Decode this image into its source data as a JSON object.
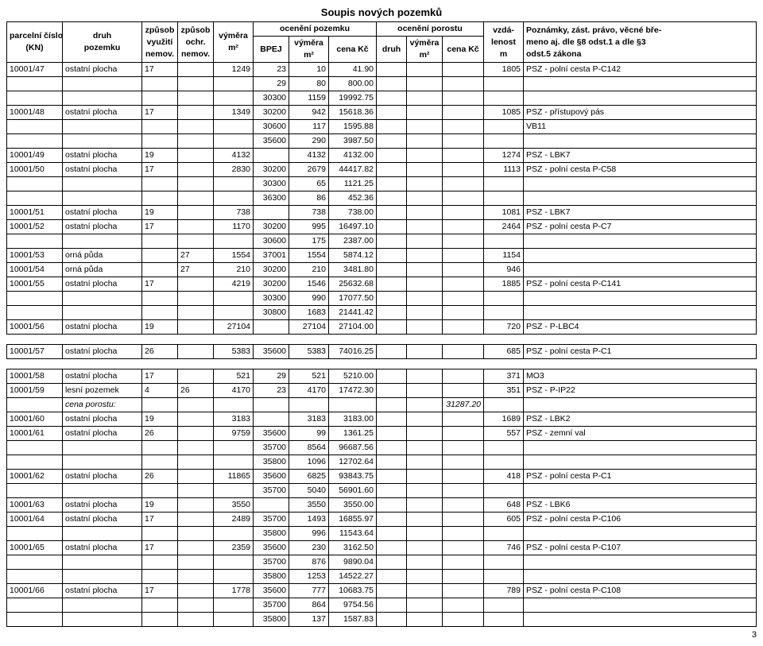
{
  "title": "Soupis nových pozemků",
  "page_number": "3",
  "header": {
    "parcela1": "parcelní číslo",
    "parcela2": "(KN)",
    "druh1": "druh",
    "druh2": "pozemku",
    "vyuziti1": "způsob",
    "vyuziti2": "využití",
    "vyuziti3": "nemov.",
    "ochr1": "způsob",
    "ochr2": "ochr.",
    "ochr3": "nemov.",
    "vymera1": "výměra",
    "vymera2": "m²",
    "oceneni_poz": "ocenění pozemku",
    "bpej": "BPEJ",
    "vymera_b1": "výměra",
    "vymera_b2": "m²",
    "cena_kc": "cena Kč",
    "oceneni_por": "ocenění porostu",
    "druh_p": "druh",
    "vymera_p1": "výměra",
    "vymera_p2": "m²",
    "cena_p": "cena Kč",
    "vzd1": "vzdá-",
    "vzd2": "lenost",
    "vzd3": "m",
    "pozn1": "Poznámky, zást. právo, věcné bře-",
    "pozn2": "meno aj. dle §8 odst.1 a dle §3",
    "pozn3": "odst.5 zákona"
  },
  "rows": [
    {
      "parc": "10001/47",
      "druh": "ostatní plocha",
      "vyuz": "17",
      "ochr": "",
      "vym": "1249",
      "bpej": "23",
      "vym2": "10",
      "cena": "41.90",
      "druh2": "",
      "vym3": "",
      "cena2": "",
      "vzd": "1805",
      "pozn": "PSZ - polní cesta P-C142"
    },
    {
      "parc": "",
      "druh": "",
      "vyuz": "",
      "ochr": "",
      "vym": "",
      "bpej": "29",
      "vym2": "80",
      "cena": "800.00",
      "druh2": "",
      "vym3": "",
      "cena2": "",
      "vzd": "",
      "pozn": ""
    },
    {
      "parc": "",
      "druh": "",
      "vyuz": "",
      "ochr": "",
      "vym": "",
      "bpej": "30300",
      "vym2": "1159",
      "cena": "19992.75",
      "druh2": "",
      "vym3": "",
      "cena2": "",
      "vzd": "",
      "pozn": ""
    },
    {
      "parc": "10001/48",
      "druh": "ostatní plocha",
      "vyuz": "17",
      "ochr": "",
      "vym": "1349",
      "bpej": "30200",
      "vym2": "942",
      "cena": "15618.36",
      "druh2": "",
      "vym3": "",
      "cena2": "",
      "vzd": "1085",
      "pozn": "PSZ - přístupový pás"
    },
    {
      "parc": "",
      "druh": "",
      "vyuz": "",
      "ochr": "",
      "vym": "",
      "bpej": "30600",
      "vym2": "117",
      "cena": "1595.88",
      "druh2": "",
      "vym3": "",
      "cena2": "",
      "vzd": "",
      "pozn": "VB11"
    },
    {
      "parc": "",
      "druh": "",
      "vyuz": "",
      "ochr": "",
      "vym": "",
      "bpej": "35600",
      "vym2": "290",
      "cena": "3987.50",
      "druh2": "",
      "vym3": "",
      "cena2": "",
      "vzd": "",
      "pozn": ""
    },
    {
      "parc": "10001/49",
      "druh": "ostatní plocha",
      "vyuz": "19",
      "ochr": "",
      "vym": "4132",
      "bpej": "",
      "vym2": "4132",
      "cena": "4132.00",
      "druh2": "",
      "vym3": "",
      "cena2": "",
      "vzd": "1274",
      "pozn": "PSZ - LBK7"
    },
    {
      "parc": "10001/50",
      "druh": "ostatní plocha",
      "vyuz": "17",
      "ochr": "",
      "vym": "2830",
      "bpej": "30200",
      "vym2": "2679",
      "cena": "44417.82",
      "druh2": "",
      "vym3": "",
      "cena2": "",
      "vzd": "1113",
      "pozn": "PSZ - polní cesta P-C58"
    },
    {
      "parc": "",
      "druh": "",
      "vyuz": "",
      "ochr": "",
      "vym": "",
      "bpej": "30300",
      "vym2": "65",
      "cena": "1121.25",
      "druh2": "",
      "vym3": "",
      "cena2": "",
      "vzd": "",
      "pozn": ""
    },
    {
      "parc": "",
      "druh": "",
      "vyuz": "",
      "ochr": "",
      "vym": "",
      "bpej": "36300",
      "vym2": "86",
      "cena": "452.36",
      "druh2": "",
      "vym3": "",
      "cena2": "",
      "vzd": "",
      "pozn": ""
    },
    {
      "parc": "10001/51",
      "druh": "ostatní plocha",
      "vyuz": "19",
      "ochr": "",
      "vym": "738",
      "bpej": "",
      "vym2": "738",
      "cena": "738.00",
      "druh2": "",
      "vym3": "",
      "cena2": "",
      "vzd": "1081",
      "pozn": "PSZ - LBK7"
    },
    {
      "parc": "10001/52",
      "druh": "ostatní plocha",
      "vyuz": "17",
      "ochr": "",
      "vym": "1170",
      "bpej": "30200",
      "vym2": "995",
      "cena": "16497.10",
      "druh2": "",
      "vym3": "",
      "cena2": "",
      "vzd": "2464",
      "pozn": "PSZ - polní cesta P-C7"
    },
    {
      "parc": "",
      "druh": "",
      "vyuz": "",
      "ochr": "",
      "vym": "",
      "bpej": "30600",
      "vym2": "175",
      "cena": "2387.00",
      "druh2": "",
      "vym3": "",
      "cena2": "",
      "vzd": "",
      "pozn": ""
    },
    {
      "parc": "10001/53",
      "druh": "orná půda",
      "vyuz": "",
      "ochr": "27",
      "vym": "1554",
      "bpej": "37001",
      "vym2": "1554",
      "cena": "5874.12",
      "druh2": "",
      "vym3": "",
      "cena2": "",
      "vzd": "1154",
      "pozn": ""
    },
    {
      "parc": "10001/54",
      "druh": "orná půda",
      "vyuz": "",
      "ochr": "27",
      "vym": "210",
      "bpej": "30200",
      "vym2": "210",
      "cena": "3481.80",
      "druh2": "",
      "vym3": "",
      "cena2": "",
      "vzd": "946",
      "pozn": ""
    },
    {
      "parc": "10001/55",
      "druh": "ostatní plocha",
      "vyuz": "17",
      "ochr": "",
      "vym": "4219",
      "bpej": "30200",
      "vym2": "1546",
      "cena": "25632.68",
      "druh2": "",
      "vym3": "",
      "cena2": "",
      "vzd": "1885",
      "pozn": "PSZ - polní cesta P-C141"
    },
    {
      "parc": "",
      "druh": "",
      "vyuz": "",
      "ochr": "",
      "vym": "",
      "bpej": "30300",
      "vym2": "990",
      "cena": "17077.50",
      "druh2": "",
      "vym3": "",
      "cena2": "",
      "vzd": "",
      "pozn": ""
    },
    {
      "parc": "",
      "druh": "",
      "vyuz": "",
      "ochr": "",
      "vym": "",
      "bpej": "30800",
      "vym2": "1683",
      "cena": "21441.42",
      "druh2": "",
      "vym3": "",
      "cena2": "",
      "vzd": "",
      "pozn": ""
    },
    {
      "parc": "10001/56",
      "druh": "ostatní plocha",
      "vyuz": "19",
      "ochr": "",
      "vym": "27104",
      "bpej": "",
      "vym2": "27104",
      "cena": "27104.00",
      "druh2": "",
      "vym3": "",
      "cena2": "",
      "vzd": "720",
      "pozn": "PSZ - P-LBC4"
    },
    {
      "gap": true
    },
    {
      "parc": "10001/57",
      "druh": "ostatní plocha",
      "vyuz": "26",
      "ochr": "",
      "vym": "5383",
      "bpej": "35600",
      "vym2": "5383",
      "cena": "74016.25",
      "druh2": "",
      "vym3": "",
      "cena2": "",
      "vzd": "685",
      "pozn": "PSZ - polní cesta P-C1"
    },
    {
      "gap": true
    },
    {
      "parc": "10001/58",
      "druh": "ostatní plocha",
      "vyuz": "17",
      "ochr": "",
      "vym": "521",
      "bpej": "29",
      "vym2": "521",
      "cena": "5210.00",
      "druh2": "",
      "vym3": "",
      "cena2": "",
      "vzd": "371",
      "pozn": "MO3"
    },
    {
      "parc": "10001/59",
      "druh": "lesní pozemek",
      "vyuz": "4",
      "ochr": "26",
      "vym": "4170",
      "bpej": "23",
      "vym2": "4170",
      "cena": "17472.30",
      "druh2": "",
      "vym3": "",
      "cena2": "",
      "vzd": "351",
      "pozn": "PSZ - P-IP22"
    },
    {
      "parc": "",
      "druh": "cena porostu:",
      "vyuz": "",
      "ochr": "",
      "vym": "",
      "bpej": "",
      "vym2": "",
      "cena": "",
      "druh2": "",
      "vym3": "",
      "cena2": "31287.20",
      "vzd": "",
      "pozn": "",
      "italic": true
    },
    {
      "parc": "10001/60",
      "druh": "ostatní plocha",
      "vyuz": "19",
      "ochr": "",
      "vym": "3183",
      "bpej": "",
      "vym2": "3183",
      "cena": "3183.00",
      "druh2": "",
      "vym3": "",
      "cena2": "",
      "vzd": "1689",
      "pozn": "PSZ - LBK2"
    },
    {
      "parc": "10001/61",
      "druh": "ostatní plocha",
      "vyuz": "26",
      "ochr": "",
      "vym": "9759",
      "bpej": "35600",
      "vym2": "99",
      "cena": "1361.25",
      "druh2": "",
      "vym3": "",
      "cena2": "",
      "vzd": "557",
      "pozn": "PSZ - zemní val"
    },
    {
      "parc": "",
      "druh": "",
      "vyuz": "",
      "ochr": "",
      "vym": "",
      "bpej": "35700",
      "vym2": "8564",
      "cena": "96687.56",
      "druh2": "",
      "vym3": "",
      "cena2": "",
      "vzd": "",
      "pozn": ""
    },
    {
      "parc": "",
      "druh": "",
      "vyuz": "",
      "ochr": "",
      "vym": "",
      "bpej": "35800",
      "vym2": "1096",
      "cena": "12702.64",
      "druh2": "",
      "vym3": "",
      "cena2": "",
      "vzd": "",
      "pozn": ""
    },
    {
      "parc": "10001/62",
      "druh": "ostatní plocha",
      "vyuz": "26",
      "ochr": "",
      "vym": "11865",
      "bpej": "35600",
      "vym2": "6825",
      "cena": "93843.75",
      "druh2": "",
      "vym3": "",
      "cena2": "",
      "vzd": "418",
      "pozn": "PSZ - polní cesta P-C1"
    },
    {
      "parc": "",
      "druh": "",
      "vyuz": "",
      "ochr": "",
      "vym": "",
      "bpej": "35700",
      "vym2": "5040",
      "cena": "56901.60",
      "druh2": "",
      "vym3": "",
      "cena2": "",
      "vzd": "",
      "pozn": ""
    },
    {
      "parc": "10001/63",
      "druh": "ostatní plocha",
      "vyuz": "19",
      "ochr": "",
      "vym": "3550",
      "bpej": "",
      "vym2": "3550",
      "cena": "3550.00",
      "druh2": "",
      "vym3": "",
      "cena2": "",
      "vzd": "648",
      "pozn": "PSZ - LBK6"
    },
    {
      "parc": "10001/64",
      "druh": "ostatní plocha",
      "vyuz": "17",
      "ochr": "",
      "vym": "2489",
      "bpej": "35700",
      "vym2": "1493",
      "cena": "16855.97",
      "druh2": "",
      "vym3": "",
      "cena2": "",
      "vzd": "605",
      "pozn": "PSZ - polní cesta P-C106"
    },
    {
      "parc": "",
      "druh": "",
      "vyuz": "",
      "ochr": "",
      "vym": "",
      "bpej": "35800",
      "vym2": "996",
      "cena": "11543.64",
      "druh2": "",
      "vym3": "",
      "cena2": "",
      "vzd": "",
      "pozn": ""
    },
    {
      "parc": "10001/65",
      "druh": "ostatní plocha",
      "vyuz": "17",
      "ochr": "",
      "vym": "2359",
      "bpej": "35600",
      "vym2": "230",
      "cena": "3162.50",
      "druh2": "",
      "vym3": "",
      "cena2": "",
      "vzd": "746",
      "pozn": "PSZ - polní cesta P-C107"
    },
    {
      "parc": "",
      "druh": "",
      "vyuz": "",
      "ochr": "",
      "vym": "",
      "bpej": "35700",
      "vym2": "876",
      "cena": "9890.04",
      "druh2": "",
      "vym3": "",
      "cena2": "",
      "vzd": "",
      "pozn": ""
    },
    {
      "parc": "",
      "druh": "",
      "vyuz": "",
      "ochr": "",
      "vym": "",
      "bpej": "35800",
      "vym2": "1253",
      "cena": "14522.27",
      "druh2": "",
      "vym3": "",
      "cena2": "",
      "vzd": "",
      "pozn": ""
    },
    {
      "parc": "10001/66",
      "druh": "ostatní plocha",
      "vyuz": "17",
      "ochr": "",
      "vym": "1778",
      "bpej": "35600",
      "vym2": "777",
      "cena": "10683.75",
      "druh2": "",
      "vym3": "",
      "cena2": "",
      "vzd": "789",
      "pozn": "PSZ - polní cesta P-C108"
    },
    {
      "parc": "",
      "druh": "",
      "vyuz": "",
      "ochr": "",
      "vym": "",
      "bpej": "35700",
      "vym2": "864",
      "cena": "9754.56",
      "druh2": "",
      "vym3": "",
      "cena2": "",
      "vzd": "",
      "pozn": ""
    },
    {
      "parc": "",
      "druh": "",
      "vyuz": "",
      "ochr": "",
      "vym": "",
      "bpej": "35800",
      "vym2": "137",
      "cena": "1587.83",
      "druh2": "",
      "vym3": "",
      "cena2": "",
      "vzd": "",
      "pozn": ""
    }
  ]
}
